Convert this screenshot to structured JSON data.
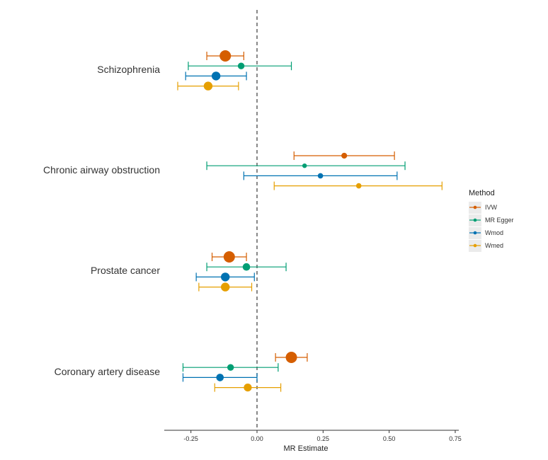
{
  "chart_data": {
    "type": "scatter",
    "subtype": "forest-plot",
    "title": "",
    "xlabel": "MR Estimate",
    "ylabel": "",
    "xlim": [
      -0.35,
      0.75
    ],
    "xticks": [
      -0.25,
      0.0,
      0.25,
      0.5,
      0.75
    ],
    "xtick_labels": [
      "-0.25",
      "0.00",
      "0.25",
      "0.50",
      "0.75"
    ],
    "reference_line": 0,
    "grid": false,
    "legend": {
      "title": "Method",
      "position": "right"
    },
    "categories": [
      "Schizophrenia",
      "Chronic airway obstruction",
      "Prostate cancer",
      "Coronary artery disease"
    ],
    "series": [
      {
        "name": "IVW",
        "color": "#D55E00",
        "estimates": [
          -0.12,
          0.33,
          -0.105,
          0.13
        ],
        "lower": [
          -0.19,
          0.14,
          -0.17,
          0.07
        ],
        "upper": [
          -0.05,
          0.52,
          -0.04,
          0.19
        ],
        "point_weight": [
          1.0,
          0.35,
          1.0,
          1.0
        ]
      },
      {
        "name": "MR Egger",
        "color": "#009E73",
        "estimates": [
          -0.06,
          0.18,
          -0.04,
          -0.1
        ],
        "lower": [
          -0.26,
          -0.19,
          -0.19,
          -0.28
        ],
        "upper": [
          0.13,
          0.56,
          0.11,
          0.08
        ],
        "point_weight": [
          0.45,
          0.2,
          0.55,
          0.45
        ]
      },
      {
        "name": "Wmod",
        "color": "#0072B2",
        "estimates": [
          -0.155,
          0.24,
          -0.12,
          -0.14
        ],
        "lower": [
          -0.27,
          -0.05,
          -0.23,
          -0.28
        ],
        "upper": [
          -0.04,
          0.53,
          -0.01,
          0.0
        ],
        "point_weight": [
          0.7,
          0.3,
          0.7,
          0.55
        ]
      },
      {
        "name": "Wmed",
        "color": "#E69F00",
        "estimates": [
          -0.185,
          0.385,
          -0.12,
          -0.035
        ],
        "lower": [
          -0.3,
          0.065,
          -0.22,
          -0.16
        ],
        "upper": [
          -0.07,
          0.7,
          -0.02,
          0.09
        ],
        "point_weight": [
          0.7,
          0.3,
          0.7,
          0.6
        ]
      }
    ]
  }
}
